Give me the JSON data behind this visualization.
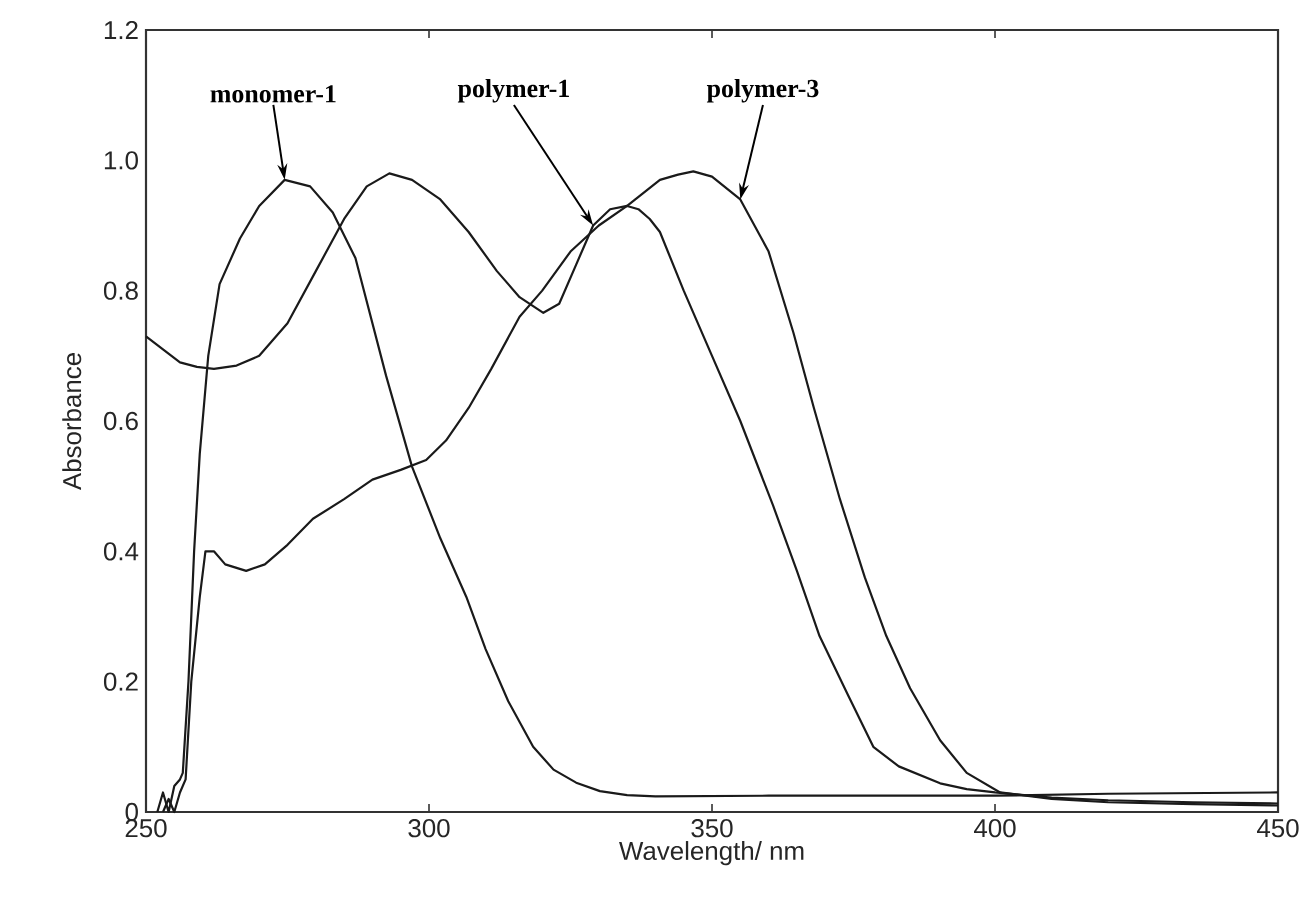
{
  "chart_data": {
    "type": "line",
    "xlabel": "Wavelength/ nm",
    "ylabel": "Absorbance",
    "xlim": [
      250,
      450
    ],
    "ylim": [
      0,
      1.2
    ],
    "xticks": [
      250,
      300,
      350,
      400,
      450
    ],
    "yticks": [
      0,
      0.2,
      0.4,
      0.6,
      {
        "value": 0.8,
        "label": "0.8"
      },
      {
        "value": 1.0,
        "label": "1.0"
      },
      1.2
    ],
    "grid": false,
    "marker": "none",
    "line_style": "solid",
    "series": [
      {
        "color": "#1a1a1a",
        "x": [
          252,
          253,
          254,
          255,
          256,
          256.5,
          257.5,
          258.5,
          259.5,
          261,
          263,
          266.6,
          270,
          274.5,
          279,
          283,
          287,
          292.4,
          297,
          302,
          306.6,
          310,
          314,
          318.4,
          322,
          326,
          330.2,
          335,
          340,
          360,
          380,
          400,
          420,
          450
        ],
        "values": [
          0,
          0.03,
          0,
          0.04,
          0.05,
          0.06,
          0.2,
          0.4,
          0.55,
          0.7,
          0.81,
          0.88,
          0.93,
          0.97,
          0.96,
          0.92,
          0.85,
          0.67,
          0.53,
          0.42,
          0.33,
          0.25,
          0.17,
          0.1,
          0.065,
          0.045,
          0.032,
          0.026,
          0.024,
          0.025,
          0.025,
          0.025,
          0.028,
          0.03
        ]
      },
      {
        "color": "#1a1a1a",
        "x": [
          250,
          253,
          256,
          259,
          262,
          266,
          270,
          275,
          280,
          285,
          289,
          293,
          297,
          302,
          307,
          312,
          316,
          320.2,
          323,
          326,
          329,
          332,
          335,
          337,
          339,
          340.8,
          345,
          350,
          355,
          360.8,
          365,
          369,
          374,
          378.5,
          383,
          390.3,
          395,
          400,
          410,
          420,
          435,
          450
        ],
        "values": [
          0.73,
          0.71,
          0.69,
          0.683,
          0.68,
          0.685,
          0.7,
          0.75,
          0.83,
          0.91,
          0.96,
          0.98,
          0.97,
          0.94,
          0.89,
          0.83,
          0.79,
          0.766,
          0.78,
          0.84,
          0.9,
          0.925,
          0.93,
          0.925,
          0.91,
          0.89,
          0.8,
          0.7,
          0.6,
          0.47,
          0.37,
          0.27,
          0.18,
          0.1,
          0.07,
          0.044,
          0.035,
          0.03,
          0.022,
          0.018,
          0.015,
          0.013
        ]
      },
      {
        "color": "#1a1a1a",
        "x": [
          253,
          254,
          255,
          256,
          257,
          258,
          259.5,
          260.5,
          262,
          264,
          267.7,
          271,
          275,
          279.5,
          285,
          290,
          295,
          299.5,
          303,
          307,
          311,
          316,
          320,
          325,
          330,
          335,
          340.8,
          344,
          346.7,
          350,
          355,
          360,
          364.4,
          368,
          372.6,
          377,
          380.8,
          385,
          390.3,
          395,
          400.9,
          410,
          420,
          435,
          450
        ],
        "values": [
          0,
          0.02,
          0,
          0.03,
          0.05,
          0.2,
          0.33,
          0.4,
          0.4,
          0.38,
          0.37,
          0.38,
          0.41,
          0.45,
          0.48,
          0.51,
          0.525,
          0.54,
          0.57,
          0.62,
          0.68,
          0.76,
          0.8,
          0.86,
          0.9,
          0.93,
          0.97,
          0.978,
          0.983,
          0.975,
          0.94,
          0.86,
          0.735,
          0.62,
          0.48,
          0.36,
          0.27,
          0.19,
          0.11,
          0.06,
          0.03,
          0.02,
          0.015,
          0.012,
          0.01
        ]
      }
    ],
    "annotations": [
      {
        "text": "monomer-1",
        "x": 274.5,
        "y": 0.97
      },
      {
        "text": "polymer-1",
        "x": 329,
        "y": 0.9
      },
      {
        "text": "polymer-3",
        "x": 355,
        "y": 0.94
      }
    ]
  }
}
